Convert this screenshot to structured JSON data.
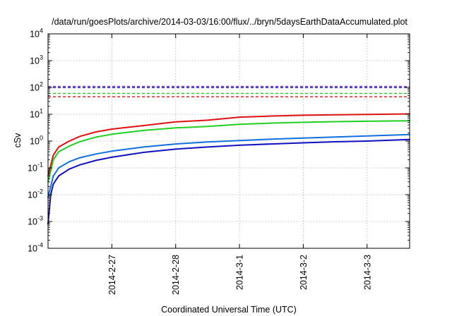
{
  "chart_data": {
    "type": "line",
    "title": "/data/run/goesPlots/archive/2014-03-03/16:00/flux/../bryn/5daysEarthDataAccumulated.plot",
    "xlabel": "Coordinated Universal Time (UTC)",
    "ylabel": "cSv",
    "yscale": "log",
    "ylim": [
      0.0001,
      10000
    ],
    "xlim": [
      "2014-02-26 00:00",
      "2014-03-03 16:00"
    ],
    "grid": true,
    "xticks": [
      {
        "value": "2014-02-27 00:00",
        "label": "2014-2-27"
      },
      {
        "value": "2014-02-28 00:00",
        "label": "2014-2-28"
      },
      {
        "value": "2014-03-01 00:00",
        "label": "2014-3-1"
      },
      {
        "value": "2014-03-02 00:00",
        "label": "2014-3-2"
      },
      {
        "value": "2014-03-03 00:00",
        "label": "2014-3-3"
      }
    ],
    "yticks": [
      {
        "value": 0.0001,
        "base": "10",
        "exp": "-4"
      },
      {
        "value": 0.001,
        "base": "10",
        "exp": "-3"
      },
      {
        "value": 0.01,
        "base": "10",
        "exp": "-2"
      },
      {
        "value": 0.1,
        "base": "10",
        "exp": "-1"
      },
      {
        "value": 1,
        "base": "10",
        "exp": "0"
      },
      {
        "value": 10,
        "base": "10",
        "exp": "1"
      },
      {
        "value": 100,
        "base": "10",
        "exp": "2"
      },
      {
        "value": 1000,
        "base": "10",
        "exp": "3"
      },
      {
        "value": 10000,
        "base": "10",
        "exp": "4"
      }
    ],
    "thresholds": [
      {
        "value": 110,
        "color": "#a040c0"
      },
      {
        "value": 100,
        "color": "#1010c0"
      },
      {
        "value": 60,
        "color": "#20d020"
      },
      {
        "value": 45,
        "color": "#e01010"
      }
    ],
    "series": [
      {
        "color": "#e01010",
        "x": [
          "2014-02-26 00:00",
          "2014-02-26 02:00",
          "2014-02-26 04:00",
          "2014-02-26 08:00",
          "2014-02-26 12:00",
          "2014-02-26 18:00",
          "2014-02-27 00:00",
          "2014-02-27 12:00",
          "2014-02-28 00:00",
          "2014-02-28 12:00",
          "2014-03-01 00:00",
          "2014-03-01 12:00",
          "2014-03-02 00:00",
          "2014-03-02 12:00",
          "2014-03-03 00:00",
          "2014-03-03 16:00"
        ],
        "y": [
          0.05,
          0.3,
          0.6,
          1.0,
          1.5,
          2.2,
          2.8,
          3.8,
          5.2,
          6.0,
          7.8,
          8.6,
          9.2,
          9.6,
          9.9,
          10.3
        ]
      },
      {
        "color": "#20d020",
        "x": [
          "2014-02-26 00:00",
          "2014-02-26 02:00",
          "2014-02-26 04:00",
          "2014-02-26 08:00",
          "2014-02-26 12:00",
          "2014-02-26 18:00",
          "2014-02-27 00:00",
          "2014-02-27 12:00",
          "2014-02-28 00:00",
          "2014-02-28 12:00",
          "2014-03-01 00:00",
          "2014-03-01 12:00",
          "2014-03-02 00:00",
          "2014-03-02 12:00",
          "2014-03-03 00:00",
          "2014-03-03 16:00"
        ],
        "y": [
          0.03,
          0.2,
          0.4,
          0.65,
          0.95,
          1.4,
          1.8,
          2.5,
          3.1,
          3.5,
          4.2,
          4.7,
          5.0,
          5.3,
          5.5,
          5.7
        ]
      },
      {
        "color": "#1070e0",
        "x": [
          "2014-02-26 00:00",
          "2014-02-26 02:00",
          "2014-02-26 04:00",
          "2014-02-26 08:00",
          "2014-02-26 12:00",
          "2014-02-26 18:00",
          "2014-02-27 00:00",
          "2014-02-27 12:00",
          "2014-02-28 00:00",
          "2014-02-28 12:00",
          "2014-03-01 00:00",
          "2014-03-01 12:00",
          "2014-03-02 00:00",
          "2014-03-02 12:00",
          "2014-03-03 00:00",
          "2014-03-03 16:00"
        ],
        "y": [
          0.008,
          0.05,
          0.1,
          0.17,
          0.24,
          0.33,
          0.42,
          0.6,
          0.78,
          0.93,
          1.05,
          1.18,
          1.3,
          1.42,
          1.55,
          1.75
        ]
      },
      {
        "color": "#1010c0",
        "x": [
          "2014-02-26 00:00",
          "2014-02-26 01:00",
          "2014-02-26 02:00",
          "2014-02-26 04:00",
          "2014-02-26 08:00",
          "2014-02-26 12:00",
          "2014-02-26 18:00",
          "2014-02-27 00:00",
          "2014-02-27 12:00",
          "2014-02-28 00:00",
          "2014-02-28 12:00",
          "2014-03-01 00:00",
          "2014-03-01 12:00",
          "2014-03-02 00:00",
          "2014-03-02 12:00",
          "2014-03-03 00:00",
          "2014-03-03 16:00"
        ],
        "y": [
          0.0008,
          0.01,
          0.025,
          0.05,
          0.09,
          0.13,
          0.19,
          0.25,
          0.38,
          0.5,
          0.6,
          0.7,
          0.78,
          0.86,
          0.94,
          1.0,
          1.15
        ]
      }
    ]
  }
}
